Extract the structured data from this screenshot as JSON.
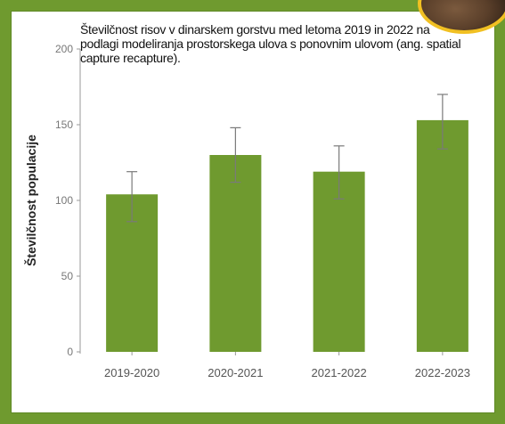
{
  "chart_data": {
    "type": "bar",
    "title": "Številčnost risov v dinarskem gorstvu med letoma 2019 in 2022 na podlagi modeliranja prostorskega ulova s ponovnim ulovom (ang. spatial capture recapture).",
    "xlabel": "",
    "ylabel": "Številčnost populacije",
    "categories": [
      "2019-2020",
      "2020-2021",
      "2021-2022",
      "2022-2023"
    ],
    "values": [
      104,
      130,
      119,
      153
    ],
    "error_low": [
      86,
      112,
      101,
      134
    ],
    "error_high": [
      119,
      148,
      136,
      170
    ],
    "ylim": [
      0,
      200
    ],
    "yticks": [
      "0",
      "50",
      "100",
      "150",
      "200"
    ],
    "grid": false,
    "bar_color": "#6f9a2f"
  },
  "colors": {
    "frame": "#6f9a2f",
    "panel": "#ffffff",
    "photo_ring": "#f1c022"
  }
}
